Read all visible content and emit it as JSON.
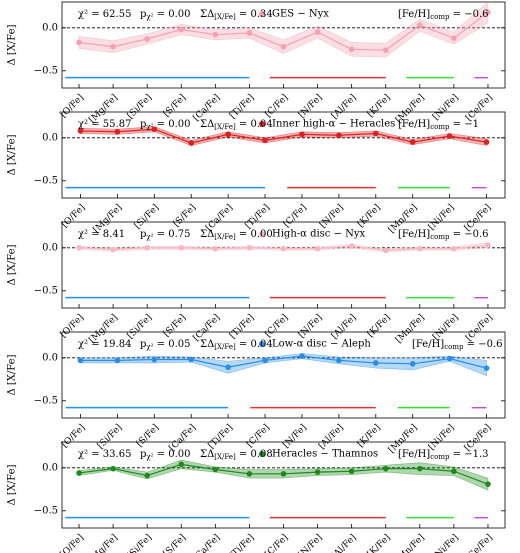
{
  "chart_data": [
    {
      "type": "line",
      "ylabel": "Δ [X/Fe]",
      "ylim": [
        -0.7,
        0.3
      ],
      "yticks": [
        {
          "value": -0.5,
          "label": "−0.5"
        },
        {
          "value": 0,
          "label": "0.0"
        }
      ],
      "hline": 0,
      "categories": [
        "[O/Fe]",
        "[Mg/Fe]",
        "[Si/Fe]",
        "[S/Fe]",
        "[Ca/Fe]",
        "[Ti/Fe]",
        "[C/Fe]",
        "[N/Fe]",
        "[Al/Fe]",
        "[K/Fe]",
        "[Mn/Fe]",
        "[Ni/Fe]",
        "[Ce/Fe]"
      ],
      "group_colors": [
        "#1e90ff",
        "#1e90ff",
        "#1e90ff",
        "#1e90ff",
        "#1e90ff",
        "#1e90ff",
        "#e03030",
        "#e03030",
        "#e03030",
        "#e03030",
        "#33dd33",
        "#33dd33",
        "#bb55cc"
      ],
      "annotations": [
        {
          "main": "χ² = 62.55"
        },
        {
          "main": "p",
          "sub": "χ²",
          "rest": " = 0.00"
        },
        {
          "main": "ΣΔ",
          "sub": "[X/Fe]",
          "rest": " = 0.34"
        },
        {
          "main": "[Fe/H]",
          "sub": "comp",
          "rest": " = −0.6"
        }
      ],
      "series": [
        {
          "name": "GES − Nyx",
          "color": "#f4a0b0",
          "values": [
            -0.17,
            -0.22,
            -0.13,
            -0.02,
            -0.08,
            -0.06,
            -0.22,
            -0.05,
            -0.25,
            -0.26,
            0.03,
            -0.12,
            0.18
          ],
          "errors": [
            0.07,
            0.07,
            0.06,
            0.06,
            0.06,
            0.06,
            0.08,
            0.07,
            0.08,
            0.08,
            0.07,
            0.07,
            0.12
          ]
        }
      ]
    },
    {
      "type": "line",
      "ylabel": "Δ [X/Fe]",
      "ylim": [
        -0.7,
        0.3
      ],
      "yticks": [
        {
          "value": -0.5,
          "label": "−0.5"
        },
        {
          "value": 0,
          "label": "0.0"
        }
      ],
      "hline": 0,
      "categories": [
        "[O/Fe]",
        "[Mg/Fe]",
        "[Si/Fe]",
        "[S/Fe]",
        "[Ca/Fe]",
        "[Ti/Fe]",
        "[C/Fe]",
        "[N/Fe]",
        "[K/Fe]",
        "[Mn/Fe]",
        "[Ni/Fe]",
        "[Ce/Fe]"
      ],
      "group_colors": [
        "#1e90ff",
        "#1e90ff",
        "#1e90ff",
        "#1e90ff",
        "#1e90ff",
        "#1e90ff",
        "#e03030",
        "#e03030",
        "#e03030",
        "#33dd33",
        "#33dd33",
        "#bb55cc"
      ],
      "annotations": [
        {
          "main": "χ² = 55.87"
        },
        {
          "main": "p",
          "sub": "χ²",
          "rest": " = 0.00"
        },
        {
          "main": "ΣΔ",
          "sub": "[X/Fe]",
          "rest": " = 0.04"
        },
        {
          "main": "[Fe/H]",
          "sub": "comp",
          "rest": " = −1"
        }
      ],
      "series": [
        {
          "name": "Inner high-α − Heracles",
          "color": "#dd1f1f",
          "values": [
            0.08,
            0.07,
            0.1,
            -0.06,
            0.04,
            -0.03,
            0.04,
            0.03,
            0.05,
            -0.05,
            0.02,
            -0.05
          ],
          "errors": [
            0.03,
            0.03,
            0.03,
            0.03,
            0.03,
            0.03,
            0.03,
            0.03,
            0.03,
            0.03,
            0.03,
            0.04
          ]
        }
      ]
    },
    {
      "type": "line",
      "ylabel": "Δ [X/Fe]",
      "ylim": [
        -0.7,
        0.3
      ],
      "yticks": [
        {
          "value": -0.5,
          "label": "−0.5"
        },
        {
          "value": 0,
          "label": "0.0"
        }
      ],
      "hline": 0,
      "categories": [
        "[O/Fe]",
        "[Mg/Fe]",
        "[Si/Fe]",
        "[S/Fe]",
        "[Ca/Fe]",
        "[Ti/Fe]",
        "[C/Fe]",
        "[N/Fe]",
        "[Al/Fe]",
        "[K/Fe]",
        "[Mn/Fe]",
        "[Ni/Fe]",
        "[Ce/Fe]"
      ],
      "group_colors": [
        "#1e90ff",
        "#1e90ff",
        "#1e90ff",
        "#1e90ff",
        "#1e90ff",
        "#1e90ff",
        "#e03030",
        "#e03030",
        "#e03030",
        "#e03030",
        "#33dd33",
        "#33dd33",
        "#bb55cc"
      ],
      "annotations": [
        {
          "main": "χ² = 8.41"
        },
        {
          "main": "p",
          "sub": "χ²",
          "rest": " = 0.75"
        },
        {
          "main": "ΣΔ",
          "sub": "[X/Fe]",
          "rest": " = 0.00"
        },
        {
          "main": "[Fe/H]",
          "sub": "comp",
          "rest": " = −0.6"
        }
      ],
      "series": [
        {
          "name": "High-α disc − Nyx",
          "color": "#f7b6c2",
          "values": [
            0.0,
            -0.02,
            0.0,
            0.0,
            -0.01,
            0.0,
            -0.01,
            -0.01,
            0.02,
            -0.03,
            -0.01,
            -0.01,
            0.03
          ],
          "errors": [
            0.02,
            0.02,
            0.02,
            0.02,
            0.02,
            0.02,
            0.02,
            0.02,
            0.02,
            0.02,
            0.02,
            0.02,
            0.03
          ]
        }
      ]
    },
    {
      "type": "line",
      "ylabel": "Δ [X/Fe]",
      "ylim": [
        -0.7,
        0.3
      ],
      "yticks": [
        {
          "value": -0.5,
          "label": "−0.5"
        },
        {
          "value": 0,
          "label": "0.0"
        }
      ],
      "hline": 0,
      "categories": [
        "[O/Fe]",
        "[Si/Fe]",
        "[S/Fe]",
        "[Ca/Fe]",
        "[Ti/Fe]",
        "[C/Fe]",
        "[N/Fe]",
        "[Al/Fe]",
        "[K/Fe]",
        "[Mn/Fe]",
        "[Ni/Fe]",
        "[Ce/Fe]"
      ],
      "group_colors": [
        "#1e90ff",
        "#1e90ff",
        "#1e90ff",
        "#1e90ff",
        "#1e90ff",
        "#e03030",
        "#e03030",
        "#e03030",
        "#e03030",
        "#33dd33",
        "#33dd33",
        "#bb55cc"
      ],
      "annotations": [
        {
          "main": "χ² = 19.84"
        },
        {
          "main": "p",
          "sub": "χ²",
          "rest": " = 0.05"
        },
        {
          "main": "ΣΔ",
          "sub": "[X/Fe]",
          "rest": " = 0.04"
        },
        {
          "main": "[Fe/H]",
          "sub": "comp",
          "rest": " = −0.6"
        }
      ],
      "series": [
        {
          "name": "Low-α disc − Aleph",
          "color": "#2a8ee8",
          "values": [
            -0.03,
            -0.03,
            -0.02,
            -0.02,
            -0.11,
            -0.03,
            0.02,
            -0.03,
            -0.06,
            -0.07,
            -0.01,
            -0.12
          ],
          "errors": [
            0.03,
            0.03,
            0.04,
            0.03,
            0.07,
            0.03,
            0.03,
            0.04,
            0.06,
            0.07,
            0.03,
            0.09
          ]
        }
      ]
    },
    {
      "type": "line",
      "ylabel": "Δ [X/Fe]",
      "ylim": [
        -0.7,
        0.3
      ],
      "yticks": [
        {
          "value": -0.5,
          "label": "−0.5"
        },
        {
          "value": 0,
          "label": "0.0"
        }
      ],
      "hline": 0,
      "categories": [
        "[O/Fe]",
        "[Mg/Fe]",
        "[Si/Fe]",
        "[S/Fe]",
        "[Ca/Fe]",
        "[Ti/Fe]",
        "[C/Fe]",
        "[N/Fe]",
        "[Al/Fe]",
        "[K/Fe]",
        "[Mn/Fe]",
        "[Ni/Fe]",
        "[Ce/Fe]"
      ],
      "group_colors": [
        "#1e90ff",
        "#1e90ff",
        "#1e90ff",
        "#1e90ff",
        "#1e90ff",
        "#1e90ff",
        "#e03030",
        "#e03030",
        "#e03030",
        "#e03030",
        "#33dd33",
        "#33dd33",
        "#bb55cc"
      ],
      "annotations": [
        {
          "main": "χ² = 33.65"
        },
        {
          "main": "p",
          "sub": "χ²",
          "rest": " = 0.00"
        },
        {
          "main": "ΣΔ",
          "sub": "[X/Fe]",
          "rest": " = 0.08"
        },
        {
          "main": "[Fe/H]",
          "sub": "comp",
          "rest": " = −1.3"
        }
      ],
      "series": [
        {
          "name": "Heracles − Thamnos",
          "color": "#1e8a1e",
          "values": [
            -0.06,
            -0.01,
            -0.09,
            0.04,
            -0.02,
            -0.07,
            -0.07,
            -0.05,
            -0.04,
            -0.01,
            -0.01,
            -0.04,
            -0.19
          ],
          "errors": [
            0.03,
            0.02,
            0.04,
            0.05,
            0.03,
            0.05,
            0.05,
            0.04,
            0.04,
            0.04,
            0.07,
            0.05,
            0.07
          ]
        }
      ]
    }
  ]
}
